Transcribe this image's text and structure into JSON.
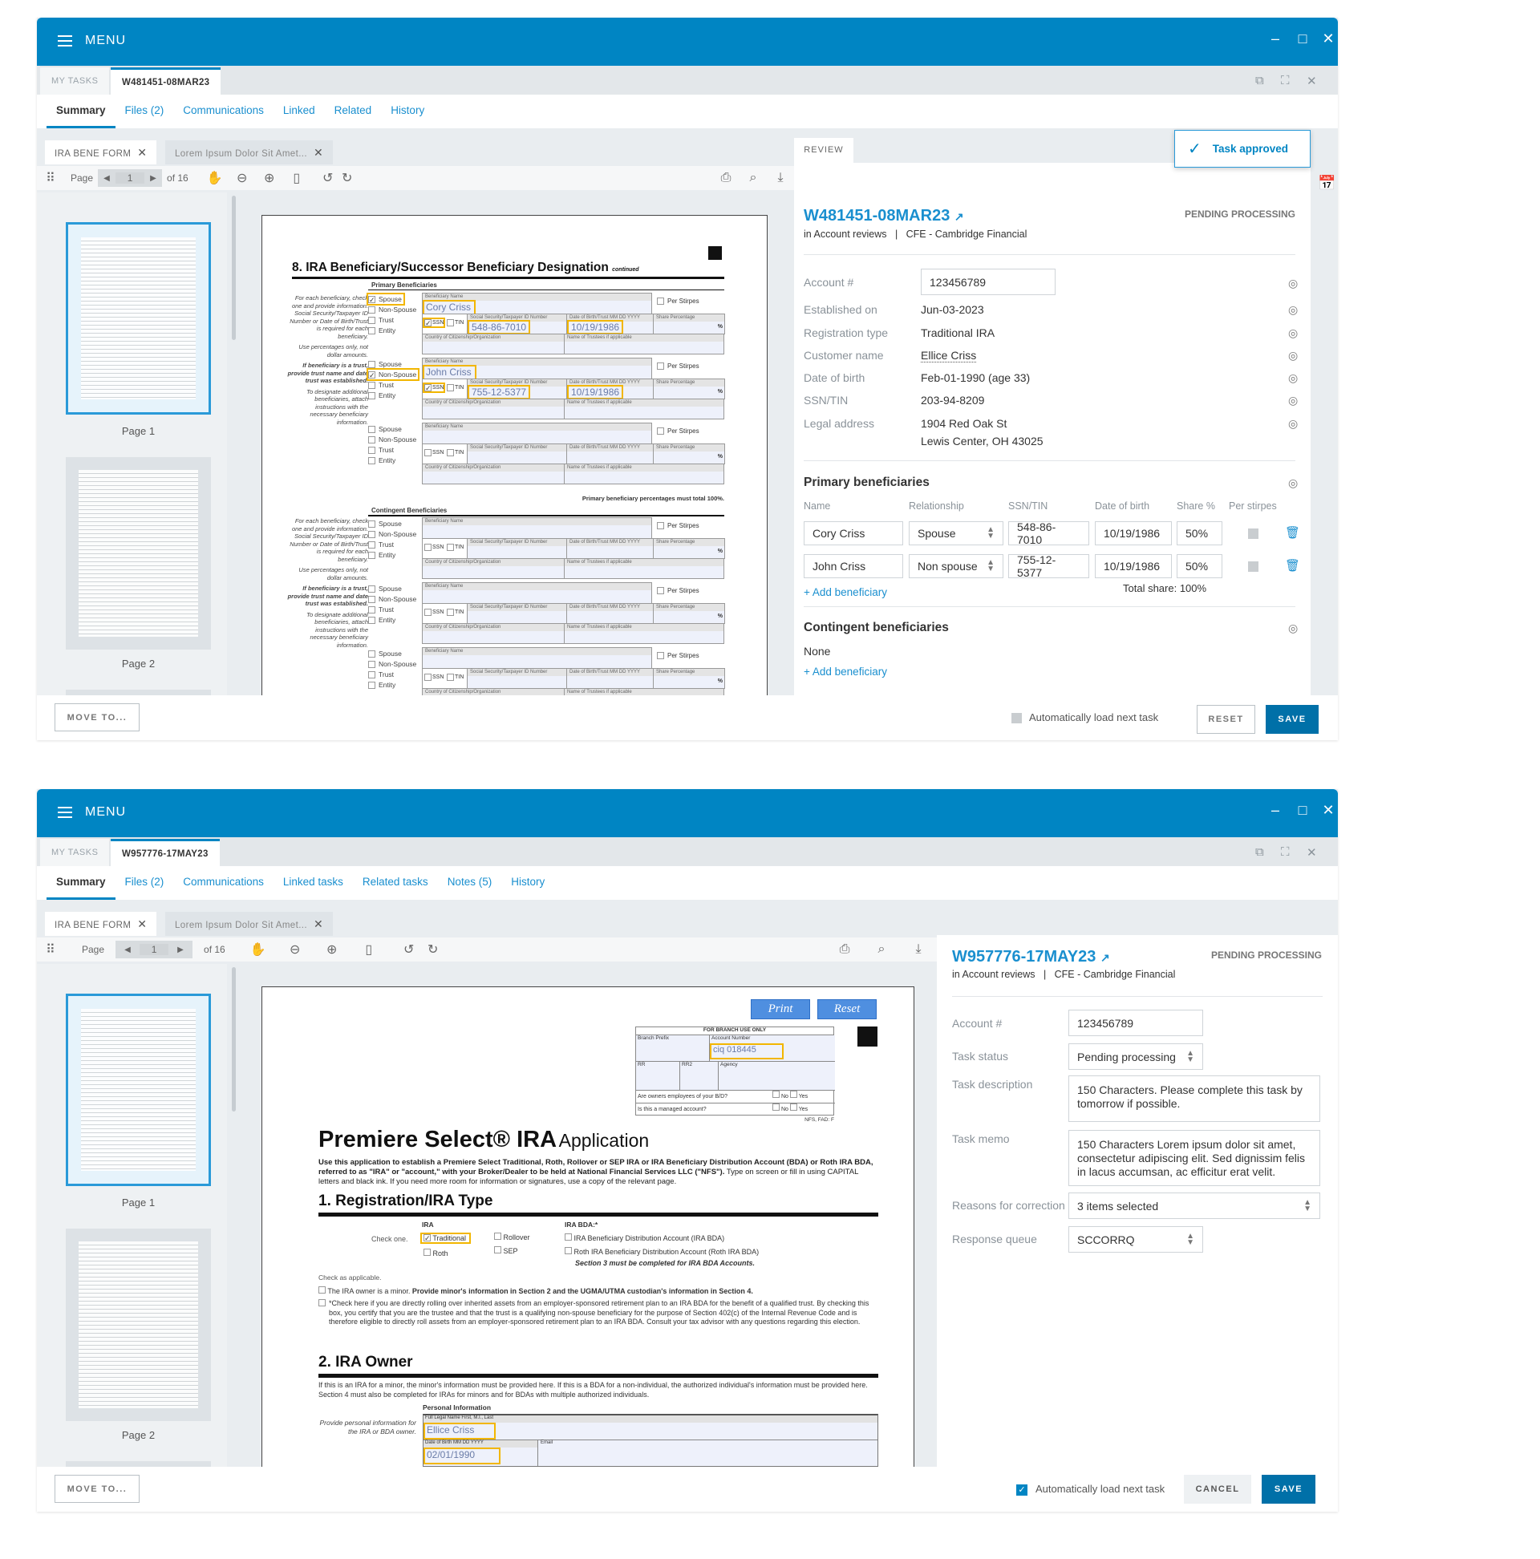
{
  "colors": {
    "brand": "#0085c3",
    "link": "#1a8fcf",
    "highlight": "#f2b600",
    "primary_button": "#0070a8"
  },
  "window1": {
    "menu_label": "MENU",
    "tabs": {
      "my_tasks": "MY TASKS",
      "task": "W481451-08MAR23"
    },
    "subnav": [
      "Summary",
      "Files (2)",
      "Communications",
      "Linked",
      "Related",
      "History"
    ],
    "doc_tabs": [
      "IRA BENE FORM",
      "Lorem Ipsum Dolor Sit Amet..."
    ],
    "toolbar": {
      "page_label": "Page",
      "page": "1",
      "of": "of 16"
    },
    "thumbs": [
      "Page 1",
      "Page 2"
    ],
    "review_tab": "REVIEW",
    "toast": "Task approved",
    "task_id": "W481451-08MAR23",
    "queue": "in Account reviews",
    "sep": "|",
    "firm": "CFE - Cambridge Financial",
    "status": "PENDING PROCESSING",
    "fields": [
      {
        "label": "Account #",
        "value": "123456789"
      },
      {
        "label": "Established on",
        "value": "Jun-03-2023"
      },
      {
        "label": "Registration type",
        "value": "Traditional IRA"
      },
      {
        "label": "Customer name",
        "value": "Ellice Criss"
      },
      {
        "label": "Date of birth",
        "value": "Feb-01-1990 (age 33)"
      },
      {
        "label": "SSN/TIN",
        "value": "203-94-8209"
      },
      {
        "label": "Legal address",
        "value": "1904 Red Oak St",
        "value2": "Lewis Center,  OH 43025"
      }
    ],
    "primary": {
      "title": "Primary beneficiaries",
      "columns": [
        "Name",
        "Relationship",
        "SSN/TIN",
        "Date of birth",
        "Share %",
        "Per stirpes"
      ],
      "rows": [
        {
          "name": "Cory Criss",
          "relationship": "Spouse",
          "ssn": "548-86-7010",
          "dob": "10/19/1986",
          "share": "50%",
          "per_stirpes": false
        },
        {
          "name": "John Criss",
          "relationship": "Non spouse",
          "ssn": "755-12-5377",
          "dob": "10/19/1986",
          "share": "50%",
          "per_stirpes": false
        }
      ],
      "add": "+ Add beneficiary",
      "total": "Total share: 100%"
    },
    "contingent": {
      "title": "Contingent beneficiaries",
      "none": "None",
      "add": "+ Add beneficiary"
    },
    "footer": {
      "move": "MOVE TO...",
      "auto_load": "Automatically load next task",
      "auto_checked": false,
      "reset": "RESET",
      "save": "SAVE"
    },
    "form": {
      "title": "8. IRA Beneficiary/Successor Beneficiary Designation",
      "continued": "continued",
      "primary_header": "Primary Beneficiaries",
      "contingent_header": "Contingent Beneficiaries",
      "total_note": "Primary beneficiary percentages must total 100%.",
      "notes": [
        "For each beneficiary, check one and provide information. Social Security/Taxpayer ID Number or Date of Birth/Trust is required for each beneficiary.",
        "Use percentages only, not dollar amounts.",
        "If beneficiary is a trust, provide trust name and date trust was established.",
        "To designate additional beneficiaries, attach instructions with the necessary beneficiary information."
      ],
      "labels": {
        "options": [
          "Spouse",
          "Non-Spouse",
          "Trust",
          "Entity"
        ],
        "name": "Beneficiary Name",
        "per_stirpes": "Per Stirpes",
        "ssn_cb": "SSN",
        "tin_cb": "TIN",
        "ssn": "Social Security/Taxpayer ID Number",
        "dob": "Date of Birth/Trust  MM DD YYYY",
        "share": "Share Percentage",
        "pct": "%",
        "country": "Country of Citizenship/Organization",
        "trustees": "Name of Trustees  if applicable"
      },
      "primary_blocks": [
        {
          "type": 0,
          "name": "Cory Criss",
          "id_type": "ssn",
          "ssn": "548-86-7010",
          "dob": "10/19/1986"
        },
        {
          "type": 1,
          "name": "John Criss",
          "id_type": "ssn",
          "ssn": "755-12-5377",
          "dob": "10/19/1986"
        },
        {
          "type": -1,
          "name": "",
          "id_type": "",
          "ssn": "",
          "dob": ""
        }
      ],
      "contingent_blocks": [
        {
          "type": -1,
          "name": "",
          "id_type": "",
          "ssn": "",
          "dob": ""
        },
        {
          "type": -1,
          "name": "",
          "id_type": "",
          "ssn": "",
          "dob": ""
        },
        {
          "type": -1,
          "name": "",
          "id_type": "",
          "ssn": "",
          "dob": ""
        }
      ]
    }
  },
  "window2": {
    "menu_label": "MENU",
    "tabs": {
      "my_tasks": "MY TASKS",
      "task": "W957776-17MAY23"
    },
    "subnav": [
      "Summary",
      "Files (2)",
      "Communications",
      "Linked tasks",
      "Related tasks",
      "Notes (5)",
      "History"
    ],
    "doc_tabs": [
      "IRA BENE FORM",
      "Lorem Ipsum Dolor Sit Amet..."
    ],
    "toolbar": {
      "page_label": "Page",
      "page": "1",
      "of": "of 16"
    },
    "thumbs": [
      "Page 1",
      "Page 2"
    ],
    "task_id": "W957776-17MAY23",
    "queue": "in Account reviews",
    "sep": "|",
    "firm": "CFE - Cambridge Financial",
    "status": "PENDING PROCESSING",
    "fields": {
      "account": {
        "label": "Account #",
        "value": "123456789"
      },
      "task_status": {
        "label": "Task status",
        "value": "Pending processing"
      },
      "description": {
        "label": "Task description",
        "value": "150 Characters. Please complete this task by tomorrow if possible."
      },
      "memo": {
        "label": "Task memo",
        "value": "150 Characters  Lorem ipsum dolor sit amet, consectetur adipiscing elit. Sed dignissim felis in lacus accumsan, ac efficitur erat velit."
      },
      "reasons": {
        "label": "Reasons for correction",
        "value": "3 items selected"
      },
      "queue": {
        "label": "Response queue",
        "value": "SCCORRQ"
      }
    },
    "footer": {
      "move": "MOVE TO...",
      "auto_load": "Automatically load next task",
      "auto_checked": true,
      "cancel": "CANCEL",
      "save": "SAVE"
    },
    "form": {
      "print": "Print",
      "reset": "Reset",
      "branch": {
        "title": "FOR BRANCH USE ONLY",
        "branch_prefix": "Branch Prefix",
        "account_number": "Account Number",
        "account_value": "ciq 018445",
        "rr": "RR",
        "rr2": "RR2",
        "agency": "Agency",
        "q1": "Are owners employees of your B/D?",
        "q2": "Is this a managed account?",
        "no": "No",
        "yes": "Yes",
        "code": "NFS, FAD: F"
      },
      "title": "Premiere Select® IRA",
      "title_suffix": "Application",
      "intro_bold": "Use this application to establish a Premiere Select Traditional, Roth, Rollover or SEP IRA or IRA Beneficiary Distribution Account (BDA) or Roth IRA BDA, referred to as \"IRA\" or \"account,\" with your Broker/Dealer to be held at National Financial Services LLC (\"NFS\").",
      "intro": "Type on screen or fill in using CAPITAL letters and black ink. If you need more room for information or signatures, use a copy of the relevant page.",
      "s1": "1. Registration/IRA Type",
      "check_one": "Check one.",
      "ira": "IRA",
      "traditional": "Traditional",
      "roth": "Roth",
      "rollover": "Rollover",
      "sep": "SEP",
      "ira_bda": "IRA BDA:*",
      "bda1": "IRA Beneficiary Distribution Account (IRA BDA)",
      "bda2": "Roth IRA Beneficiary Distribution Account (Roth IRA BDA)",
      "s3_note": "Section 3 must be completed for IRA BDA Accounts.",
      "check_applicable": "Check as applicable.",
      "minor": "The IRA owner is a minor.",
      "minor_bold": "Provide minor's information in Section 2 and the UGMA/UTMA custodian's information in Section 4.",
      "rollover_note": "*Check here if you are directly rolling over inherited assets from an employer-sponsored retirement plan to an IRA BDA for the benefit of a qualified trust. By checking this box, you certify that you are the trustee and that the trust is a qualifying non-spouse beneficiary for the purpose of Section 402(c) of the Internal Revenue Code and is therefore eligible to directly roll assets from an employer-sponsored retirement plan to an IRA BDA. Consult your tax advisor with any questions regarding this election.",
      "s2": "2. IRA Owner",
      "s2_text": "If this is an IRA for a minor, the minor's information must be provided here. If this is a BDA for a non-individual, the authorized individual's information must be provided here. Section 4 must also be completed for IRAs for minors and for BDAs with multiple authorized individuals.",
      "personal_info": "Personal Information",
      "provide_note": "Provide personal information for the IRA or BDA owner.",
      "full_name_label": "Full Legal Name  First, M.I., Last",
      "full_name": "Ellice Criss",
      "dob_label": "Date of Birth  MM DD YYYY",
      "dob": "02/01/1990",
      "email_label": "Email"
    }
  }
}
